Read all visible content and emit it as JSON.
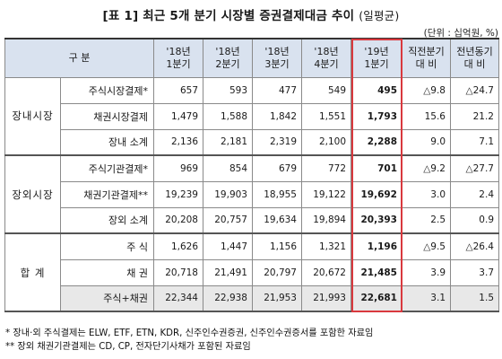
{
  "title": {
    "main": "[표 1] 최근 5개 분기 시장별 증권결제대금 추이",
    "sub": "(일평균)"
  },
  "unit": "(단위 : 십억원, %)",
  "header": {
    "group": "구   분",
    "cols": [
      "'18년\n1분기",
      "'18년\n2분기",
      "'18년\n3분기",
      "'18년\n4분기",
      "'19년\n1분기",
      "직전분기\n대  비",
      "전년동기\n대  비"
    ]
  },
  "groups": [
    {
      "name": "장내시장",
      "rows": [
        {
          "label": "주식시장결제*",
          "values": [
            "657",
            "593",
            "477",
            "549",
            "495",
            "△9.8",
            "△24.7"
          ]
        },
        {
          "label": "채권시장결제",
          "values": [
            "1,479",
            "1,588",
            "1,842",
            "1,551",
            "1,793",
            "15.6",
            "21.2"
          ]
        },
        {
          "label": "장내 소계",
          "values": [
            "2,136",
            "2,181",
            "2,319",
            "2,100",
            "2,288",
            "9.0",
            "7.1"
          ]
        }
      ]
    },
    {
      "name": "장외시장",
      "rows": [
        {
          "label": "주식기관결제*",
          "values": [
            "969",
            "854",
            "679",
            "772",
            "701",
            "△9.2",
            "△27.7"
          ]
        },
        {
          "label": "채권기관결제**",
          "values": [
            "19,239",
            "19,903",
            "18,955",
            "19,122",
            "19,692",
            "3.0",
            "2.4"
          ]
        },
        {
          "label": "장외 소계",
          "values": [
            "20,208",
            "20,757",
            "19,634",
            "19,894",
            "20,393",
            "2.5",
            "0.9"
          ]
        }
      ]
    },
    {
      "name": "합    계",
      "rows": [
        {
          "label": "주  식",
          "values": [
            "1,626",
            "1,447",
            "1,156",
            "1,321",
            "1,196",
            "△9.5",
            "△26.4"
          ]
        },
        {
          "label": "채  권",
          "values": [
            "20,718",
            "21,491",
            "20,797",
            "20,672",
            "21,485",
            "3.9",
            "3.7"
          ]
        },
        {
          "label": "주식+채권",
          "values": [
            "22,344",
            "22,938",
            "21,953",
            "21,993",
            "22,681",
            "3.1",
            "1.5"
          ]
        }
      ]
    }
  ],
  "notes": [
    "*  장내·외 주식결제는 ELW, ETF, ETN, KDR, 신주인수권증권, 신주인수권증서를 포함한 자료임",
    "** 장외 채권기관결제는 CD, CP, 전자단기사채가 포함된 자료임"
  ],
  "colors": {
    "header_bg": "#d9e2ef",
    "highlight": "#d9393e",
    "total_bg": "#e8e8e8"
  }
}
